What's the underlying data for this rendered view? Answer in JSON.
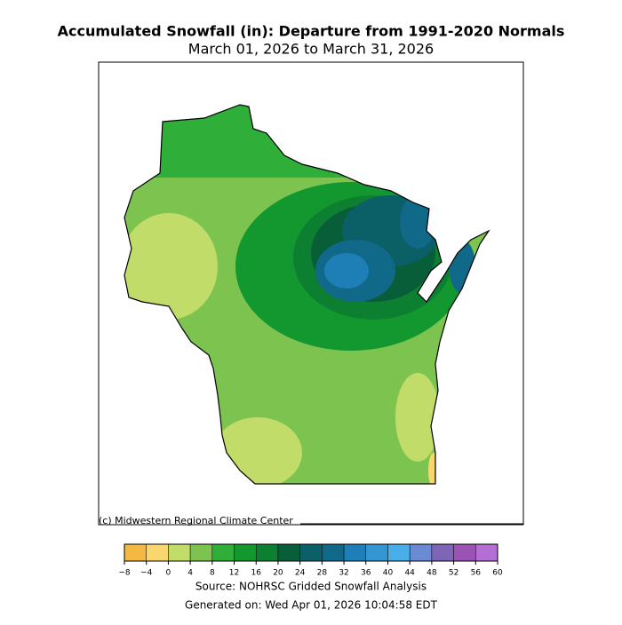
{
  "title": "Accumulated Snowfall (in): Departure from 1991-2020 Normals",
  "subtitle": "March 01, 2026 to March 31, 2026",
  "credit": "(c) Midwestern Regional Climate Center",
  "colorbar": {
    "ticks": [
      {
        "value": -8,
        "label": "−8"
      },
      {
        "value": -4,
        "label": "−4"
      },
      0,
      4,
      8,
      12,
      16,
      20,
      24,
      28,
      32,
      36,
      40,
      44,
      48,
      52,
      56,
      60
    ],
    "colors": [
      "#f4b942",
      "#f9d66e",
      "#c2dc6a",
      "#7cc350",
      "#2fae3a",
      "#13982f",
      "#0c8030",
      "#085e38",
      "#0b5f66",
      "#11698a",
      "#1e7fb7",
      "#3497d1",
      "#49ade8",
      "#6a8bd3",
      "#7e65b5",
      "#9a53b3",
      "#b46fd4"
    ]
  },
  "source": "Source: NOHRSC Gridded Snowfall Analysis",
  "generated": "Generated on: Wed Apr 01, 2026 10:04:58 EDT"
}
